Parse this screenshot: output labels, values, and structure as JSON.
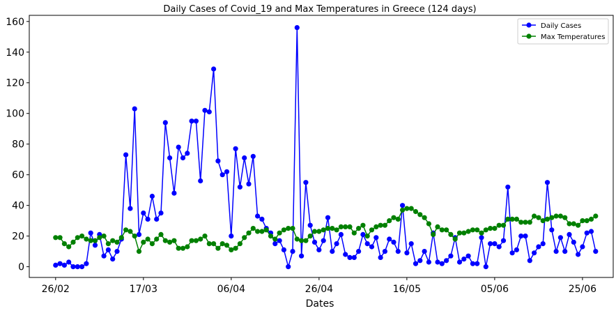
{
  "chart_data": {
    "type": "line",
    "title": "Daily Cases of Covid_19 and Max Temperatures in Greece (124 days)",
    "xlabel": "Dates",
    "ylabel": "",
    "x_tick_labels": [
      "26/02",
      "17/03",
      "06/04",
      "26/04",
      "16/05",
      "05/06",
      "25/06"
    ],
    "x_tick_indices": [
      0,
      20,
      40,
      60,
      80,
      100,
      120
    ],
    "y_ticks": [
      0,
      20,
      40,
      60,
      80,
      100,
      120,
      140,
      160
    ],
    "xlim": [
      -6,
      127
    ],
    "ylim": [
      -7,
      164
    ],
    "legend_position": "top-right",
    "grid": false,
    "series": [
      {
        "name": "Daily Cases",
        "color": "#0000ff",
        "marker": "circle",
        "values": [
          1,
          2,
          1,
          3,
          0,
          0,
          0,
          2,
          22,
          14,
          21,
          7,
          11,
          5,
          10,
          18,
          73,
          38,
          103,
          21,
          35,
          31,
          46,
          31,
          35,
          94,
          71,
          48,
          78,
          71,
          74,
          95,
          95,
          56,
          102,
          101,
          129,
          69,
          60,
          62,
          20,
          77,
          52,
          71,
          54,
          72,
          33,
          31,
          25,
          22,
          15,
          17,
          11,
          0,
          10,
          156,
          7,
          55,
          27,
          16,
          11,
          17,
          32,
          10,
          15,
          21,
          8,
          6,
          6,
          10,
          21,
          15,
          13,
          19,
          6,
          10,
          18,
          16,
          10,
          40,
          9,
          15,
          2,
          4,
          10,
          3,
          22,
          3,
          2,
          4,
          7,
          19,
          3,
          5,
          7,
          2,
          2,
          19,
          0,
          15,
          15,
          13,
          17,
          52,
          9,
          11,
          20,
          20,
          4,
          9,
          13,
          15,
          55,
          24,
          10,
          19,
          10,
          21,
          16,
          8,
          13,
          22,
          23,
          10
        ]
      },
      {
        "name": "Max Temperatures",
        "color": "#008000",
        "marker": "circle",
        "values": [
          19,
          19,
          15,
          13,
          16,
          19,
          20,
          18,
          17,
          17,
          19,
          20,
          15,
          17,
          16,
          19,
          24,
          23,
          20,
          10,
          16,
          18,
          15,
          18,
          21,
          17,
          16,
          17,
          12,
          12,
          13,
          17,
          17,
          18,
          20,
          15,
          15,
          12,
          15,
          14,
          11,
          12,
          15,
          19,
          22,
          25,
          23,
          23,
          24,
          20,
          18,
          22,
          24,
          25,
          25,
          18,
          17,
          17,
          20,
          23,
          23,
          24,
          25,
          25,
          24,
          26,
          26,
          26,
          22,
          25,
          27,
          20,
          24,
          26,
          27,
          27,
          30,
          32,
          31,
          37,
          38,
          38,
          36,
          34,
          32,
          28,
          21,
          26,
          24,
          24,
          21,
          18,
          22,
          22,
          23,
          24,
          24,
          22,
          24,
          25,
          25,
          27,
          27,
          31,
          31,
          31,
          29,
          29,
          29,
          33,
          32,
          30,
          31,
          32,
          33,
          33,
          32,
          28,
          28,
          27,
          30,
          30,
          31,
          33
        ]
      }
    ]
  }
}
